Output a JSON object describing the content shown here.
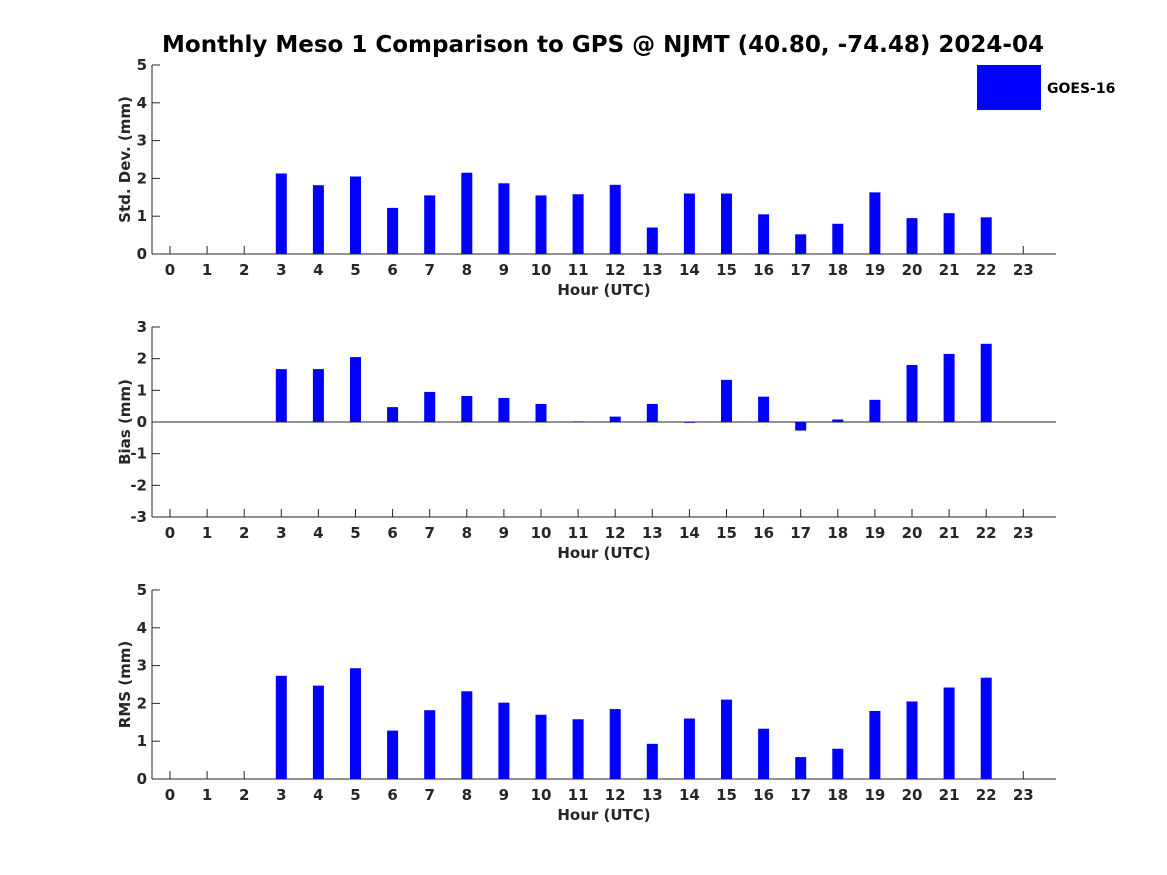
{
  "title": "Monthly Meso 1 Comparison to GPS @ NJMT (40.80, -74.48) 2024-04",
  "legend": {
    "label": "GOES-16",
    "color": "#0000ff",
    "position": "top-right"
  },
  "chart_data": [
    {
      "type": "bar",
      "ylabel": "Std. Dev. (mm)",
      "xlabel": "Hour (UTC)",
      "ylim": [
        0,
        5
      ],
      "yticks": [
        0,
        1,
        2,
        3,
        4,
        5
      ],
      "categories": [
        "0",
        "1",
        "2",
        "3",
        "4",
        "5",
        "6",
        "7",
        "8",
        "9",
        "10",
        "11",
        "12",
        "13",
        "14",
        "15",
        "16",
        "17",
        "18",
        "19",
        "20",
        "21",
        "22",
        "23"
      ],
      "series": [
        {
          "name": "GOES-16",
          "color": "#0000ff",
          "values": [
            null,
            null,
            null,
            2.13,
            1.82,
            2.05,
            1.22,
            1.55,
            2.15,
            1.87,
            1.55,
            1.58,
            1.83,
            0.7,
            1.6,
            1.6,
            1.05,
            0.52,
            0.8,
            1.63,
            0.95,
            1.08,
            0.97,
            null
          ]
        }
      ]
    },
    {
      "type": "bar",
      "ylabel": "Bias (mm)",
      "xlabel": "Hour (UTC)",
      "ylim": [
        -3,
        3
      ],
      "yticks": [
        -3,
        -2,
        -1,
        0,
        1,
        2,
        3
      ],
      "categories": [
        "0",
        "1",
        "2",
        "3",
        "4",
        "5",
        "6",
        "7",
        "8",
        "9",
        "10",
        "11",
        "12",
        "13",
        "14",
        "15",
        "16",
        "17",
        "18",
        "19",
        "20",
        "21",
        "22",
        "23"
      ],
      "series": [
        {
          "name": "GOES-16",
          "color": "#0000ff",
          "values": [
            null,
            null,
            null,
            1.67,
            1.67,
            2.05,
            0.47,
            0.95,
            0.82,
            0.76,
            0.57,
            0.02,
            0.17,
            0.57,
            0.0,
            1.33,
            0.8,
            -0.27,
            0.08,
            0.7,
            1.8,
            2.15,
            2.47,
            null
          ]
        }
      ]
    },
    {
      "type": "bar",
      "ylabel": "RMS (mm)",
      "xlabel": "Hour (UTC)",
      "ylim": [
        0,
        5
      ],
      "yticks": [
        0,
        1,
        2,
        3,
        4,
        5
      ],
      "categories": [
        "0",
        "1",
        "2",
        "3",
        "4",
        "5",
        "6",
        "7",
        "8",
        "9",
        "10",
        "11",
        "12",
        "13",
        "14",
        "15",
        "16",
        "17",
        "18",
        "19",
        "20",
        "21",
        "22",
        "23"
      ],
      "series": [
        {
          "name": "GOES-16",
          "color": "#0000ff",
          "values": [
            null,
            null,
            null,
            2.73,
            2.47,
            2.93,
            1.28,
            1.82,
            2.32,
            2.02,
            1.7,
            1.58,
            1.85,
            0.93,
            1.6,
            2.1,
            1.33,
            0.58,
            0.8,
            1.8,
            2.05,
            2.42,
            2.68,
            null
          ]
        }
      ]
    }
  ]
}
